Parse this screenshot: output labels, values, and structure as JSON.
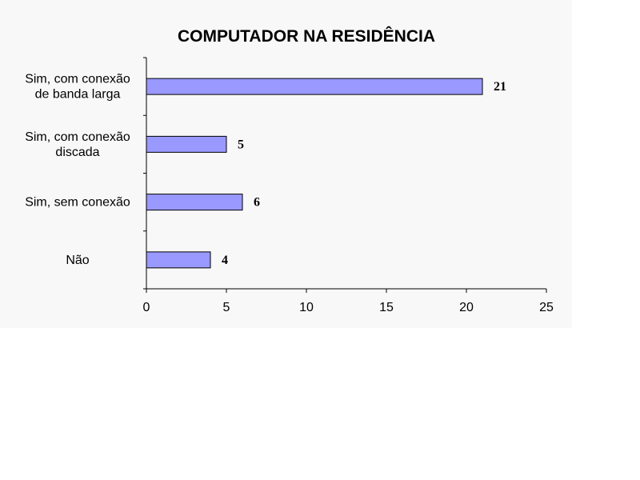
{
  "chart_data": {
    "type": "bar",
    "orientation": "horizontal",
    "title": "COMPUTADOR NA RESIDÊNCIA",
    "categories": [
      [
        "Sim, com conexão",
        "de banda larga"
      ],
      [
        "Sim, com conexão",
        "discada"
      ],
      [
        "Sim, sem conexão"
      ],
      [
        "Não"
      ]
    ],
    "values": [
      21,
      5,
      6,
      4
    ],
    "data_labels": [
      "21",
      "5",
      "6",
      "4"
    ],
    "xlim": [
      0,
      25
    ],
    "xticks": [
      "0",
      "5",
      "10",
      "15",
      "20",
      "25"
    ],
    "grid": false,
    "legend": "none",
    "bar_color": "#9999ff",
    "bar_border_color": "#000000"
  }
}
